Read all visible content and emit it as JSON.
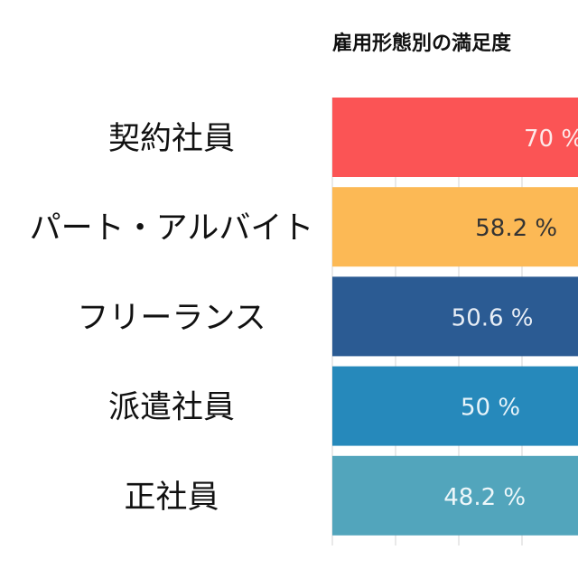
{
  "chart_data": {
    "type": "bar",
    "orientation": "horizontal",
    "title": "雇用形態別の満足度",
    "categories": [
      "契約社員",
      "パート・アルバイト",
      "フリーランス",
      "派遣社員",
      "正社員"
    ],
    "values": [
      70,
      58.2,
      50.6,
      50,
      48.2
    ],
    "data_labels": [
      "70 %",
      "58.2 %",
      "50.6 %",
      "50 %",
      "48.2 %"
    ],
    "colors": [
      "#fb5455",
      "#fcb955",
      "#2b5b93",
      "#2689bb",
      "#52a5bc"
    ],
    "label_colors": [
      "#fde8e8",
      "#333333",
      "#e8eef6",
      "#e8f4fa",
      "#eef7fa"
    ],
    "unit": "%",
    "grid": true,
    "xlim": [
      0,
      100
    ]
  }
}
